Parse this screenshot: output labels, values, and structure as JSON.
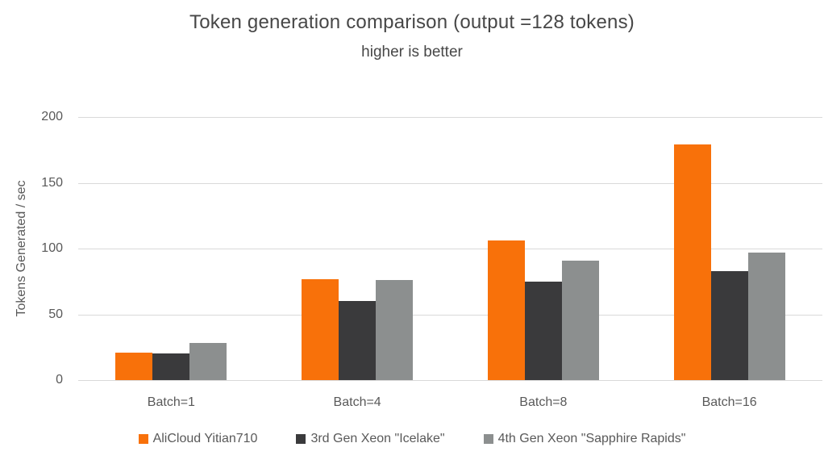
{
  "chart_data": {
    "type": "bar",
    "title": "Token generation comparison (output =128 tokens)",
    "subtitle": "higher is better",
    "ylabel": "Tokens Generated / sec",
    "xlabel": "",
    "categories": [
      "Batch=1",
      "Batch=4",
      "Batch=8",
      "Batch=16"
    ],
    "series": [
      {
        "name": "AliCloud Yitian710",
        "color": "#F8710A",
        "values": [
          21,
          77,
          106,
          179
        ]
      },
      {
        "name": "3rd Gen Xeon \"Icelake\"",
        "color": "#3A3A3C",
        "values": [
          20,
          60,
          75,
          83
        ]
      },
      {
        "name": "4th Gen Xeon \"Sapphire Rapids\"",
        "color": "#8C8F8F",
        "values": [
          28,
          76,
          91,
          97
        ]
      }
    ],
    "ylim": [
      0,
      200
    ],
    "yticks": [
      0,
      50,
      100,
      150,
      200
    ],
    "grid": true,
    "legend_position": "bottom",
    "colors": {
      "gridline": "#D9D9D9",
      "axis_text": "#595959",
      "title_text": "#474747",
      "background": "#FFFFFF"
    }
  }
}
